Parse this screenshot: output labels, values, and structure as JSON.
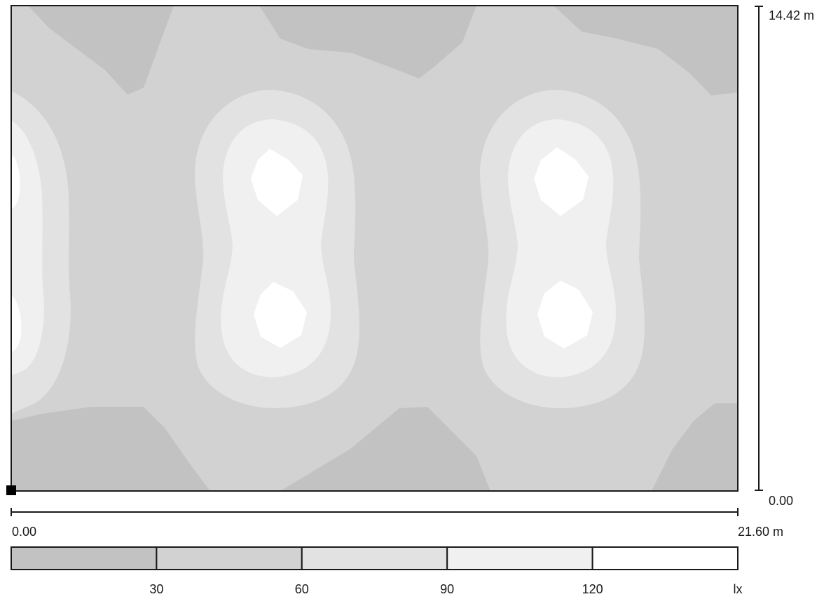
{
  "plot": {
    "room_height_label": "14.42 m",
    "room_width_label": "21.60 m",
    "y_origin_label": "0.00",
    "x_origin_label": "0.00"
  },
  "legend": {
    "unit_label": "lx",
    "ticks": [
      "30",
      "60",
      "90",
      "120"
    ],
    "band_colors": [
      "#c2c2c2",
      "#d2d2d2",
      "#e2e2e2",
      "#f0f0f0",
      "#ffffff"
    ]
  },
  "chart_data": {
    "type": "heatmap",
    "x_range": [
      0.0,
      21.6
    ],
    "y_range": [
      0.0,
      14.42
    ],
    "x_unit": "m",
    "y_unit": "m",
    "value_unit": "lx",
    "levels": [
      30,
      60,
      90,
      120
    ],
    "colors_by_band": [
      "#c2c2c2",
      "#d2d2d2",
      "#e2e2e2",
      "#f0f0f0",
      "#ffffff"
    ]
  }
}
